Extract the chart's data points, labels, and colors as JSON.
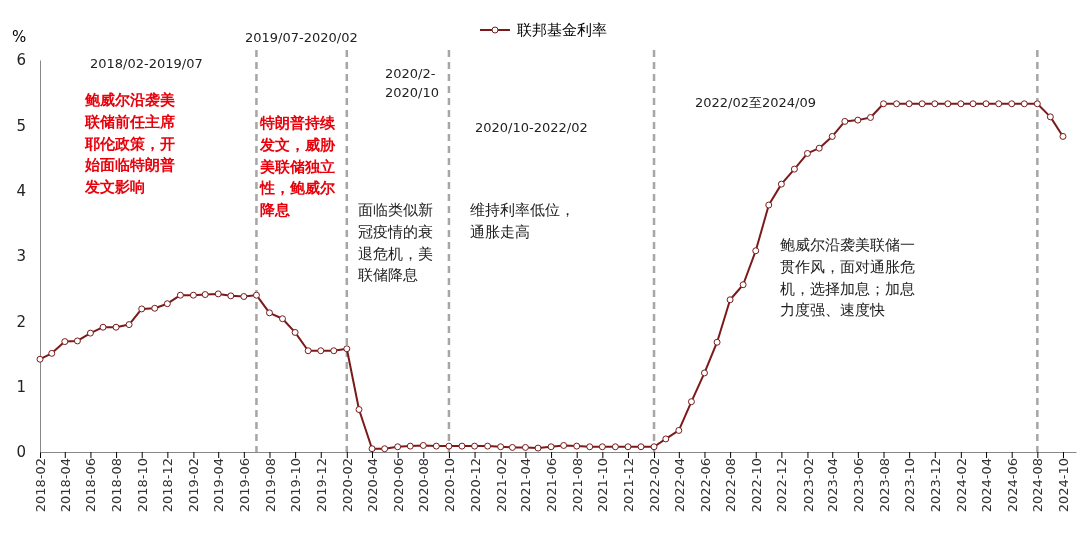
{
  "chart_data": {
    "type": "line",
    "ylabel": "%",
    "x": [
      "2018-02",
      "2018-03",
      "2018-04",
      "2018-05",
      "2018-06",
      "2018-07",
      "2018-08",
      "2018-09",
      "2018-10",
      "2018-11",
      "2018-12",
      "2019-01",
      "2019-02",
      "2019-03",
      "2019-04",
      "2019-05",
      "2019-06",
      "2019-07",
      "2019-08",
      "2019-09",
      "2019-10",
      "2019-11",
      "2019-12",
      "2020-01",
      "2020-02",
      "2020-03",
      "2020-04",
      "2020-05",
      "2020-06",
      "2020-07",
      "2020-08",
      "2020-09",
      "2020-10",
      "2020-11",
      "2020-12",
      "2021-01",
      "2021-02",
      "2021-03",
      "2021-04",
      "2021-05",
      "2021-06",
      "2021-07",
      "2021-08",
      "2021-09",
      "2021-10",
      "2021-11",
      "2021-12",
      "2022-01",
      "2022-02",
      "2022-03",
      "2022-04",
      "2022-05",
      "2022-06",
      "2022-07",
      "2022-08",
      "2022-09",
      "2022-10",
      "2022-11",
      "2022-12",
      "2023-01",
      "2023-02",
      "2023-03",
      "2023-04",
      "2023-05",
      "2023-06",
      "2023-07",
      "2023-08",
      "2023-09",
      "2023-10",
      "2023-11",
      "2023-12",
      "2024-01",
      "2024-02",
      "2024-03",
      "2024-04",
      "2024-05",
      "2024-06",
      "2024-07",
      "2024-08",
      "2024-09",
      "2024-10"
    ],
    "series": [
      {
        "name": "联邦基金利率",
        "color": "#7b1a1a",
        "values": [
          1.42,
          1.51,
          1.69,
          1.7,
          1.82,
          1.91,
          1.91,
          1.95,
          2.19,
          2.2,
          2.27,
          2.4,
          2.4,
          2.41,
          2.42,
          2.39,
          2.38,
          2.4,
          2.13,
          2.04,
          1.83,
          1.55,
          1.55,
          1.55,
          1.58,
          0.65,
          0.05,
          0.05,
          0.08,
          0.09,
          0.1,
          0.09,
          0.09,
          0.09,
          0.09,
          0.09,
          0.08,
          0.07,
          0.07,
          0.06,
          0.08,
          0.1,
          0.09,
          0.08,
          0.08,
          0.08,
          0.08,
          0.08,
          0.08,
          0.2,
          0.33,
          0.77,
          1.21,
          1.68,
          2.33,
          2.56,
          3.08,
          3.78,
          4.1,
          4.33,
          4.57,
          4.65,
          4.83,
          5.06,
          5.08,
          5.12,
          5.33,
          5.33,
          5.33,
          5.33,
          5.33,
          5.33,
          5.33,
          5.33,
          5.33,
          5.33,
          5.33,
          5.33,
          5.33,
          5.13,
          4.83
        ]
      }
    ],
    "xlim": [
      "2018-02",
      "2024-11"
    ],
    "xticks": [
      "2018-02",
      "2018-04",
      "2018-06",
      "2018-08",
      "2018-10",
      "2018-12",
      "2019-02",
      "2019-04",
      "2019-06",
      "2019-08",
      "2019-10",
      "2019-12",
      "2020-02",
      "2020-04",
      "2020-06",
      "2020-08",
      "2020-10",
      "2020-12",
      "2021-02",
      "2021-04",
      "2021-06",
      "2021-08",
      "2021-10",
      "2021-12",
      "2022-02",
      "2022-04",
      "2022-06",
      "2022-08",
      "2022-10",
      "2022-12",
      "2023-02",
      "2023-04",
      "2023-06",
      "2023-08",
      "2023-10",
      "2023-12",
      "2024-02",
      "2024-04",
      "2024-06",
      "2024-08",
      "2024-10"
    ],
    "ylim": [
      0,
      6
    ],
    "yticks": [
      0,
      1,
      2,
      3,
      4,
      5,
      6
    ],
    "ref_lines": [
      {
        "axis": "x",
        "value": "2019-07",
        "color": "#a6a6a6",
        "line_style": "dashed"
      },
      {
        "axis": "x",
        "value": "2020-02",
        "color": "#a6a6a6",
        "line_style": "dashed"
      },
      {
        "axis": "x",
        "value": "2020-10",
        "color": "#a6a6a6",
        "line_style": "dashed"
      },
      {
        "axis": "x",
        "value": "2022-02",
        "color": "#a6a6a6",
        "line_style": "dashed"
      },
      {
        "axis": "x",
        "value": "2024-08",
        "color": "#a6a6a6",
        "line_style": "dashed"
      }
    ],
    "annotations": [
      "2018/02-2019/07",
      "鲍威尔沿袭美联储前任主席耶伦政策，开始面临特朗普发文影响",
      "2019/07-2020/02",
      "特朗普持续发文，威胁美联储独立性，鲍威尔降息",
      "2020/2-2020/10",
      "面临类似新冠疫情的衰退危机，美联储降息",
      "2020/10-2022/02",
      "维持利率低位，通胀走高",
      "2022/02至2024/09",
      "鲍威尔沿袭美联储一贯作风，面对通胀危机，选择加息；加息力度强、速度快"
    ],
    "marker": "circle",
    "line_style": "solid",
    "legend": "top",
    "grid": false
  }
}
